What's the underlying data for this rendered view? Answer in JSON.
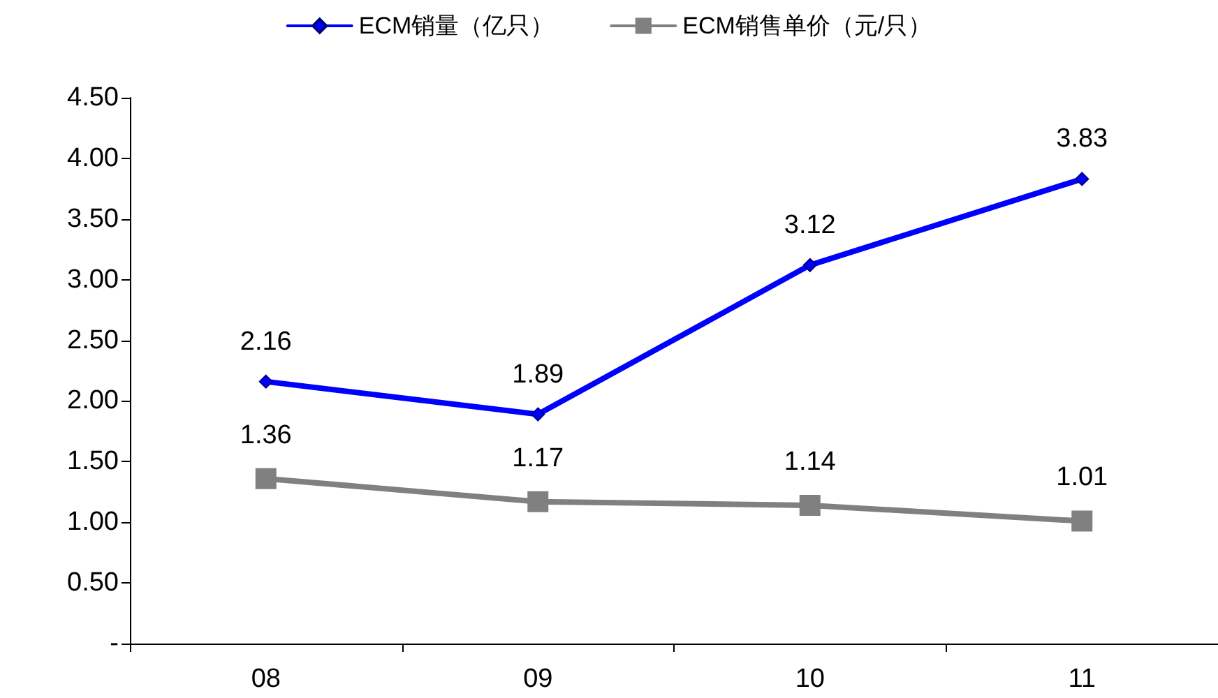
{
  "chart_data": {
    "type": "line",
    "categories": [
      "08",
      "09",
      "10",
      "11"
    ],
    "series": [
      {
        "name": "ECM销量（亿只）",
        "color": "#0000ff",
        "marker": "diamond",
        "values": [
          2.16,
          1.89,
          3.12,
          3.83
        ]
      },
      {
        "name": "ECM销售单价（元/只）",
        "color": "#808080",
        "marker": "square",
        "values": [
          1.36,
          1.17,
          1.14,
          1.01
        ]
      }
    ],
    "ylim": [
      0,
      4.5
    ],
    "yticks": [
      {
        "value": 0,
        "label": "-"
      },
      {
        "value": 0.5,
        "label": "0.50"
      },
      {
        "value": 1,
        "label": "1.00"
      },
      {
        "value": 1.5,
        "label": "1.50"
      },
      {
        "value": 2,
        "label": "2.00"
      },
      {
        "value": 2.5,
        "label": "2.50"
      },
      {
        "value": 3,
        "label": "3.00"
      },
      {
        "value": 3.5,
        "label": "3.50"
      },
      {
        "value": 4,
        "label": "4.00"
      },
      {
        "value": 4.5,
        "label": "4.50"
      }
    ],
    "grid": false,
    "legend": "top",
    "data_labels": true,
    "line_style": "solid"
  }
}
